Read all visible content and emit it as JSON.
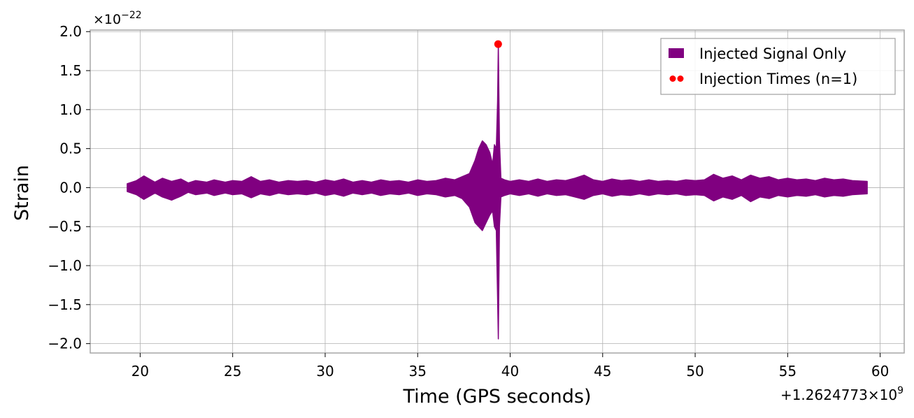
{
  "chart_data": {
    "type": "line",
    "title": "",
    "xlabel": "Time (GPS seconds)",
    "ylabel": "Strain",
    "x_offset_label": "+1.2624773×10",
    "x_offset_exponent": "9",
    "y_scale_label": "×10",
    "y_scale_exponent": "−22",
    "xlim": [
      17.3,
      61.3
    ],
    "ylim": [
      -2.12,
      2.02
    ],
    "grid": true,
    "legend_position": "top-right",
    "x_ticks": [
      {
        "value": 20,
        "label": "20"
      },
      {
        "value": 25,
        "label": "25"
      },
      {
        "value": 30,
        "label": "30"
      },
      {
        "value": 35,
        "label": "35"
      },
      {
        "value": 40,
        "label": "40"
      },
      {
        "value": 45,
        "label": "45"
      },
      {
        "value": 50,
        "label": "50"
      },
      {
        "value": 55,
        "label": "55"
      },
      {
        "value": 60,
        "label": "60"
      }
    ],
    "y_ticks": [
      {
        "value": 2.0,
        "label": "2.0"
      },
      {
        "value": 1.5,
        "label": "1.5"
      },
      {
        "value": 1.0,
        "label": "1.0"
      },
      {
        "value": 0.5,
        "label": "0.5"
      },
      {
        "value": 0.0,
        "label": "0.0"
      },
      {
        "value": -0.5,
        "label": "−0.5"
      },
      {
        "value": -1.0,
        "label": "−1.0"
      },
      {
        "value": -1.5,
        "label": "−1.5"
      },
      {
        "value": -2.0,
        "label": "−2.0"
      }
    ],
    "series": [
      {
        "name": "Injected Signal Only",
        "kind": "line",
        "color": "#800080",
        "x": [
          19.3,
          19.8,
          20.2,
          20.8,
          21.2,
          21.7,
          22.2,
          22.6,
          23.0,
          23.6,
          24.0,
          24.6,
          25.0,
          25.5,
          26.0,
          26.5,
          27.0,
          27.5,
          28.0,
          28.5,
          29.0,
          29.5,
          30.0,
          30.5,
          31.0,
          31.5,
          32.0,
          32.5,
          33.0,
          33.5,
          34.0,
          34.5,
          35.0,
          35.5,
          36.0,
          36.5,
          37.0,
          37.4,
          37.8,
          38.1,
          38.3,
          38.5,
          38.7,
          38.9,
          39.05,
          39.15,
          39.25,
          39.32,
          39.36,
          39.42,
          39.5,
          39.7,
          40.0,
          40.5,
          41.0,
          41.5,
          42.0,
          42.5,
          43.0,
          43.5,
          44.0,
          44.5,
          45.0,
          45.5,
          46.0,
          46.5,
          47.0,
          47.5,
          48.0,
          48.5,
          49.0,
          49.5,
          50.0,
          50.5,
          51.0,
          51.5,
          52.0,
          52.5,
          53.0,
          53.5,
          54.0,
          54.5,
          55.0,
          55.5,
          56.0,
          56.5,
          57.0,
          57.5,
          58.0,
          58.5,
          59.3
        ],
        "upper": [
          0.05,
          0.09,
          0.15,
          0.07,
          0.12,
          0.08,
          0.11,
          0.06,
          0.09,
          0.07,
          0.1,
          0.07,
          0.09,
          0.08,
          0.14,
          0.08,
          0.1,
          0.07,
          0.09,
          0.08,
          0.09,
          0.07,
          0.1,
          0.08,
          0.11,
          0.07,
          0.09,
          0.07,
          0.1,
          0.08,
          0.09,
          0.07,
          0.1,
          0.08,
          0.09,
          0.12,
          0.1,
          0.14,
          0.18,
          0.35,
          0.5,
          0.6,
          0.55,
          0.45,
          0.3,
          0.55,
          0.5,
          1.1,
          1.84,
          0.6,
          0.12,
          0.1,
          0.08,
          0.1,
          0.08,
          0.11,
          0.08,
          0.1,
          0.09,
          0.12,
          0.16,
          0.1,
          0.08,
          0.11,
          0.09,
          0.1,
          0.08,
          0.1,
          0.08,
          0.09,
          0.08,
          0.1,
          0.09,
          0.1,
          0.17,
          0.12,
          0.15,
          0.1,
          0.16,
          0.12,
          0.14,
          0.1,
          0.12,
          0.1,
          0.11,
          0.09,
          0.12,
          0.1,
          0.11,
          0.09,
          0.08
        ],
        "lower": [
          -0.05,
          -0.09,
          -0.15,
          -0.07,
          -0.12,
          -0.16,
          -0.11,
          -0.06,
          -0.09,
          -0.07,
          -0.1,
          -0.07,
          -0.09,
          -0.08,
          -0.13,
          -0.08,
          -0.1,
          -0.07,
          -0.09,
          -0.08,
          -0.09,
          -0.07,
          -0.1,
          -0.08,
          -0.11,
          -0.07,
          -0.09,
          -0.07,
          -0.1,
          -0.08,
          -0.09,
          -0.07,
          -0.1,
          -0.08,
          -0.09,
          -0.12,
          -0.1,
          -0.14,
          -0.25,
          -0.45,
          -0.5,
          -0.55,
          -0.45,
          -0.35,
          -0.3,
          -0.5,
          -0.55,
          -1.4,
          -1.94,
          -0.5,
          -0.12,
          -0.1,
          -0.08,
          -0.1,
          -0.08,
          -0.11,
          -0.08,
          -0.1,
          -0.09,
          -0.12,
          -0.15,
          -0.1,
          -0.08,
          -0.11,
          -0.09,
          -0.1,
          -0.08,
          -0.1,
          -0.08,
          -0.09,
          -0.08,
          -0.1,
          -0.09,
          -0.1,
          -0.17,
          -0.12,
          -0.15,
          -0.1,
          -0.18,
          -0.12,
          -0.14,
          -0.1,
          -0.12,
          -0.1,
          -0.11,
          -0.09,
          -0.12,
          -0.1,
          -0.11,
          -0.09,
          -0.08
        ]
      },
      {
        "name": "Injection Times (n=1)",
        "kind": "scatter",
        "color": "#ff0000",
        "x": [
          39.35
        ],
        "y": [
          1.84
        ]
      }
    ]
  }
}
